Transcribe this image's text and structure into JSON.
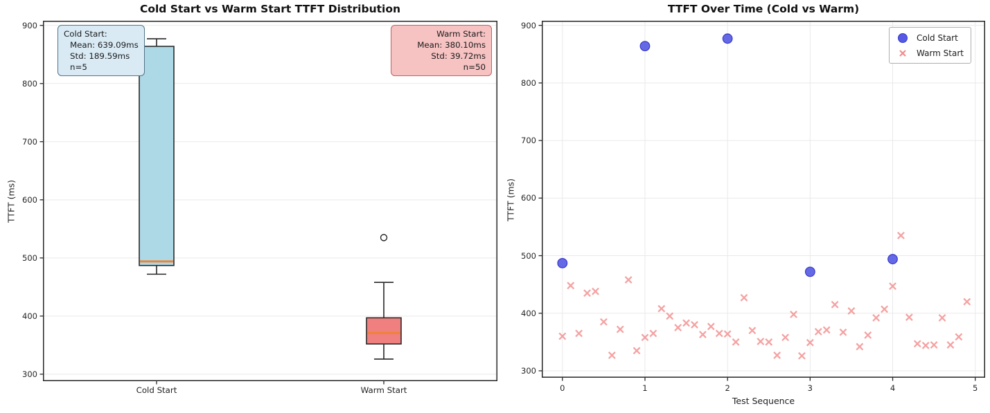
{
  "figure": {
    "background": "#ffffff"
  },
  "chart_data": [
    {
      "type": "box",
      "title": "Cold Start vs Warm Start TTFT Distribution",
      "ylabel": "TTFT (ms)",
      "categories": [
        "Cold Start",
        "Warm Start"
      ],
      "yticks": [
        300,
        400,
        500,
        600,
        700,
        800,
        900
      ],
      "ylim": [
        288,
        908
      ],
      "grid": "horizontal",
      "median_color": "#ef8335",
      "box_edge_color": "#2a2a2a",
      "boxes": [
        {
          "label": "Cold Start",
          "whisker_low": 472,
          "q1": 487,
          "median": 494,
          "q3": 864,
          "whisker_high": 877,
          "outliers": [],
          "fill": "#add8e6"
        },
        {
          "label": "Warm Start",
          "whisker_low": 326,
          "q1": 352,
          "median": 371,
          "q3": 397,
          "whisker_high": 458,
          "outliers": [
            535
          ],
          "fill": "#f08080"
        }
      ],
      "annotations": [
        {
          "name": "cold-start-stats",
          "align": "left",
          "bg": "#d9eaf5",
          "border": "#4f7487",
          "lines": [
            "Cold Start:",
            "Mean: 639.09ms",
            "Std: 189.59ms",
            "n=5"
          ]
        },
        {
          "name": "warm-start-stats",
          "align": "right",
          "bg": "#f6c2c2",
          "border": "#c06060",
          "lines": [
            "Warm Start:",
            "Mean: 380.10ms",
            "Std: 39.72ms",
            "n=50"
          ]
        }
      ]
    },
    {
      "type": "scatter",
      "title": "TTFT Over Time (Cold vs Warm)",
      "xlabel": "Test Sequence",
      "ylabel": "TTFT (ms)",
      "xticks": [
        0,
        1,
        2,
        3,
        4,
        5
      ],
      "yticks": [
        300,
        400,
        500,
        600,
        700,
        800,
        900
      ],
      "xlim": [
        -0.25,
        5.12
      ],
      "ylim": [
        288,
        908
      ],
      "grid": "both",
      "legend": {
        "position": "top-right"
      },
      "series": [
        {
          "name": "Cold Start",
          "marker": "circle",
          "color": "#5559e3",
          "edge": "#3538c9",
          "x": [
            0,
            1,
            2,
            3,
            4
          ],
          "y": [
            487,
            864,
            877,
            472,
            494
          ]
        },
        {
          "name": "Warm Start",
          "marker": "x",
          "color": "#f28b8b",
          "x": [
            0.0,
            0.1,
            0.2,
            0.3,
            0.4,
            0.5,
            0.6,
            0.7,
            0.8,
            0.9,
            1.0,
            1.1,
            1.2,
            1.3,
            1.4,
            1.5,
            1.6,
            1.7,
            1.8,
            1.9,
            2.0,
            2.1,
            2.2,
            2.3,
            2.4,
            2.5,
            2.6,
            2.7,
            2.8,
            2.9,
            3.0,
            3.1,
            3.2,
            3.3,
            3.4,
            3.5,
            3.6,
            3.7,
            3.8,
            3.9,
            4.0,
            4.1,
            4.2,
            4.3,
            4.4,
            4.5,
            4.6,
            4.7,
            4.8,
            4.9
          ],
          "y": [
            360,
            448,
            365,
            435,
            438,
            385,
            327,
            372,
            458,
            335,
            358,
            365,
            408,
            395,
            375,
            383,
            380,
            363,
            377,
            365,
            364,
            350,
            427,
            370,
            351,
            350,
            327,
            358,
            398,
            326,
            349,
            368,
            371,
            415,
            367,
            404,
            342,
            362,
            392,
            407,
            447,
            535,
            393,
            347,
            344,
            345,
            392,
            345,
            359,
            420
          ]
        }
      ]
    }
  ]
}
